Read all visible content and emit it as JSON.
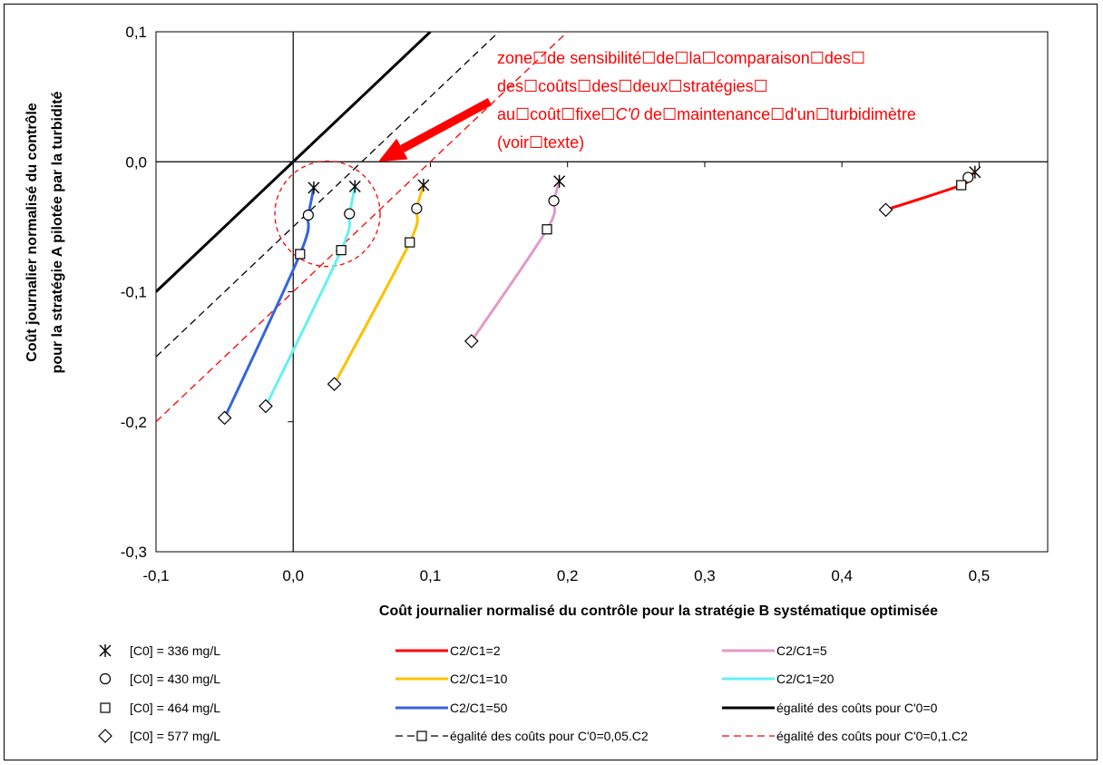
{
  "chart_data": {
    "type": "line",
    "xlabel": "Coût journalier normalisé du contrôle pour la stratégie B systématique optimisée",
    "ylabel_line1": "Coût journalier normalisé du contrôle",
    "ylabel_line2": "pour  la stratégie A  pilotée par la turbidité",
    "xlim": [
      -0.1,
      0.55
    ],
    "ylim": [
      -0.3,
      0.1
    ],
    "xticks": [
      -0.1,
      0.0,
      0.1,
      0.2,
      0.3,
      0.4,
      0.5
    ],
    "xtick_labels": [
      "-0,1",
      "0,0",
      "0,1",
      "0,2",
      "0,3",
      "0,4",
      "0,5"
    ],
    "yticks": [
      0.1,
      0.0,
      -0.1,
      -0.2,
      -0.3
    ],
    "ytick_labels": [
      "0,1",
      "0,0",
      "-0,1",
      "-0,2",
      "-0,3"
    ],
    "grid": false,
    "legend_position": "bottom",
    "annotation": {
      "lines": [
        "zone☐de sensibilité☐de☐la☐comparaison☐des☐",
        "des☐coûts☐des☐deux☐stratégies☐"
      ],
      "line3_a": "au☐coût☐fixe☐",
      "line3_b": "C'0",
      "line3_c": " de☐maintenance☐d'un☐turbidimètre",
      "line4": " (voir☐texte)"
    },
    "reference_lines": [
      {
        "name": "égalité des coûts pour C'0=0",
        "color": "#000000",
        "dash": "solid",
        "width": 3,
        "x": [
          -0.1,
          0.1
        ],
        "y": [
          -0.1,
          0.1
        ]
      },
      {
        "name": "égalité des coûts pour C'0=0,05.C2",
        "color": "#000000",
        "dash": "dashed",
        "width": 1.3,
        "x": [
          -0.1,
          0.15
        ],
        "y": [
          -0.15,
          0.1
        ]
      },
      {
        "name": "égalité des coûts pour C'0=0,1.C2",
        "color": "#ff0000",
        "dash": "dashed",
        "width": 1.3,
        "x": [
          -0.1,
          0.2
        ],
        "y": [
          -0.2,
          0.1
        ]
      }
    ],
    "series": [
      {
        "name": "C2/C1=2",
        "color": "#ff0000",
        "points": [
          {
            "x": 0.497,
            "y": -0.008,
            "marker": "star"
          },
          {
            "x": 0.492,
            "y": -0.012,
            "marker": "circle"
          },
          {
            "x": 0.487,
            "y": -0.018,
            "marker": "square"
          },
          {
            "x": 0.432,
            "y": -0.037,
            "marker": "diamond"
          }
        ]
      },
      {
        "name": "C2/C1=5",
        "color": "#e39ac9",
        "points": [
          {
            "x": 0.194,
            "y": -0.015,
            "marker": "star"
          },
          {
            "x": 0.19,
            "y": -0.03,
            "marker": "circle"
          },
          {
            "x": 0.185,
            "y": -0.052,
            "marker": "square"
          },
          {
            "x": 0.13,
            "y": -0.138,
            "marker": "diamond"
          }
        ]
      },
      {
        "name": "C2/C1=10",
        "color": "#ffc000",
        "points": [
          {
            "x": 0.095,
            "y": -0.018,
            "marker": "star"
          },
          {
            "x": 0.09,
            "y": -0.036,
            "marker": "circle"
          },
          {
            "x": 0.085,
            "y": -0.062,
            "marker": "square"
          },
          {
            "x": 0.03,
            "y": -0.171,
            "marker": "diamond"
          }
        ]
      },
      {
        "name": "C2/C1=20",
        "color": "#66f0f0",
        "points": [
          {
            "x": 0.045,
            "y": -0.019,
            "marker": "star"
          },
          {
            "x": 0.041,
            "y": -0.04,
            "marker": "circle"
          },
          {
            "x": 0.035,
            "y": -0.068,
            "marker": "square"
          },
          {
            "x": -0.02,
            "y": -0.188,
            "marker": "diamond"
          }
        ]
      },
      {
        "name": "C2/C1=50",
        "color": "#3366dd",
        "points": [
          {
            "x": 0.015,
            "y": -0.02,
            "marker": "star"
          },
          {
            "x": 0.011,
            "y": -0.041,
            "marker": "circle"
          },
          {
            "x": 0.005,
            "y": -0.071,
            "marker": "square"
          },
          {
            "x": -0.05,
            "y": -0.197,
            "marker": "diamond"
          }
        ]
      }
    ],
    "marker_legend": [
      {
        "marker": "star",
        "label": "[C0] = 336 mg/L"
      },
      {
        "marker": "circle",
        "label": "[C0] = 430 mg/L"
      },
      {
        "marker": "square",
        "label": "[C0] = 464 mg/L"
      },
      {
        "marker": "diamond",
        "label": "[C0] = 577 mg/L"
      }
    ],
    "line_legend": [
      {
        "label": "C2/C1=2",
        "color": "#ff0000",
        "dash": "solid",
        "width": 3
      },
      {
        "label": "C2/C1=5",
        "color": "#e39ac9",
        "dash": "solid",
        "width": 3
      },
      {
        "label": "C2/C1=10",
        "color": "#ffc000",
        "dash": "solid",
        "width": 3
      },
      {
        "label": "C2/C1=20",
        "color": "#66f0f0",
        "dash": "solid",
        "width": 3
      },
      {
        "label": "C2/C1=50",
        "color": "#3366dd",
        "dash": "solid",
        "width": 3
      },
      {
        "label": "égalité des coûts pour C'0=0",
        "color": "#000000",
        "dash": "solid",
        "width": 3
      },
      {
        "label": "égalité des coûts pour C'0=0,05.C2",
        "color": "#000000",
        "dash": "dashed",
        "width": 1.3,
        "marker": "square"
      },
      {
        "label": "égalité des coûts pour C'0=0,1.C2",
        "color": "#ff0000",
        "dash": "dashed",
        "width": 1.3
      }
    ]
  }
}
